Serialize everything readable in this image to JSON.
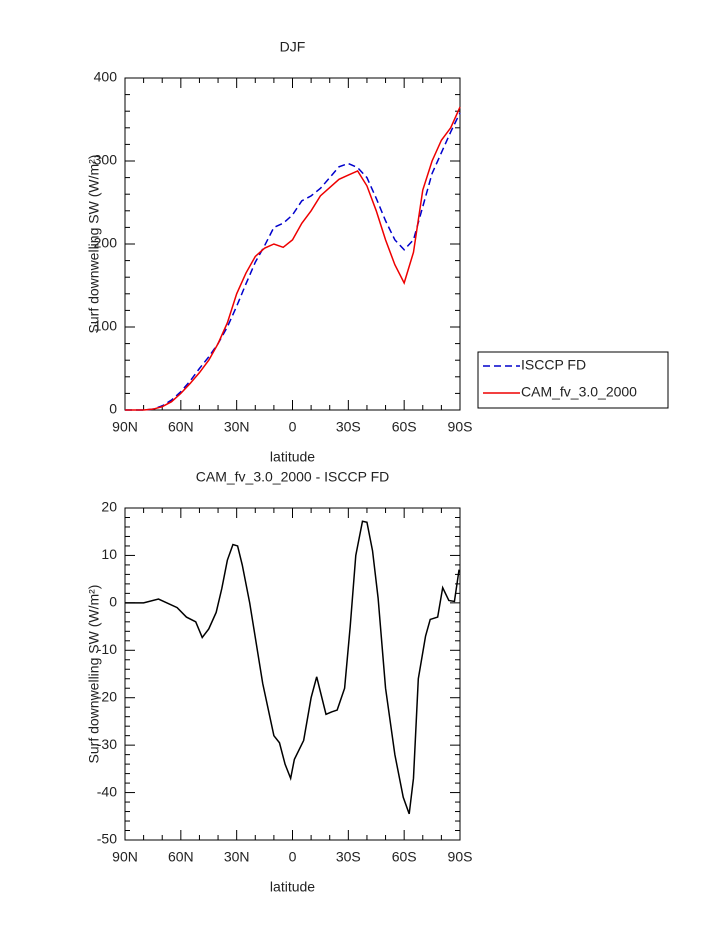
{
  "chart_data": [
    {
      "type": "line",
      "title": "DJF",
      "xlabel": "latitude",
      "ylabel": "Surf downwelling SW (W/m²)",
      "x": [
        90,
        85,
        80,
        75,
        70,
        65,
        60,
        55,
        50,
        45,
        40,
        35,
        30,
        25,
        20,
        15,
        10,
        5,
        0,
        -5,
        -10,
        -15,
        -20,
        -25,
        -30,
        -35,
        -40,
        -45,
        -50,
        -55,
        -60,
        -65,
        -70,
        -75,
        -80,
        -85,
        -90
      ],
      "series": [
        {
          "name": "ISCCP FD",
          "color": "#0000cc",
          "linestyle": "dashed",
          "values": [
            0,
            0,
            0,
            1,
            5,
            12,
            22,
            35,
            50,
            64,
            80,
            100,
            125,
            152,
            178,
            198,
            220,
            225,
            235,
            252,
            258,
            267,
            280,
            293,
            297,
            292,
            280,
            255,
            228,
            205,
            193,
            205,
            245,
            285,
            310,
            335,
            358
          ]
        },
        {
          "name": "CAM_fv_3.0_2000",
          "color": "#ee0000",
          "linestyle": "solid",
          "values": [
            0,
            0,
            0,
            1,
            4,
            10,
            20,
            32,
            45,
            60,
            80,
            105,
            140,
            165,
            185,
            195,
            200,
            196,
            205,
            225,
            240,
            258,
            268,
            278,
            283,
            288,
            270,
            240,
            205,
            175,
            153,
            190,
            265,
            300,
            325,
            340,
            365
          ]
        }
      ],
      "xlim": [
        90,
        -90
      ],
      "xticks": [
        {
          "value": 90,
          "label": "90N"
        },
        {
          "value": 60,
          "label": "60N"
        },
        {
          "value": 30,
          "label": "30N"
        },
        0,
        {
          "value": -30,
          "label": "30S"
        },
        {
          "value": -60,
          "label": "60S"
        },
        {
          "value": -90,
          "label": "90S"
        }
      ],
      "ylim": [
        0,
        400
      ],
      "yticks": [
        0,
        100,
        200,
        300,
        400
      ],
      "legend": "right"
    },
    {
      "type": "line",
      "title": "CAM_fv_3.0_2000 - ISCCP FD",
      "xlabel": "latitude",
      "ylabel": "Surf downwelling SW (W/m²)",
      "x": [
        90,
        85,
        80,
        72,
        62,
        57,
        52,
        48.5,
        45,
        41,
        38,
        35,
        32,
        29.5,
        27,
        23,
        16,
        10,
        7,
        4,
        1,
        -1,
        -6,
        -10,
        -13,
        -18,
        -21,
        -24,
        -28,
        -31,
        -34,
        -37.6,
        -40,
        -43,
        -46,
        -50,
        -55,
        -59.5,
        -62.7,
        -65,
        -67.6,
        -71.5,
        -74,
        -78,
        -80.7,
        -84,
        -87,
        -89.5
      ],
      "series": [
        {
          "color": "#000000",
          "linestyle": "solid",
          "values": [
            0,
            0,
            0,
            0.8,
            -1,
            -3,
            -4,
            -7.3,
            -5.5,
            -2,
            3,
            9,
            12.3,
            12,
            8,
            0,
            -17,
            -28,
            -29.5,
            -34,
            -37,
            -33,
            -29,
            -20,
            -15.6,
            -23.5,
            -23,
            -22.6,
            -18,
            -5,
            10,
            17.2,
            17,
            11,
            1,
            -18,
            -32,
            -41,
            -44.5,
            -37,
            -16,
            -7,
            -3.5,
            -3,
            3.2,
            0.5,
            0.3,
            7
          ]
        }
      ],
      "xlim": [
        90,
        -90
      ],
      "xticks": [
        {
          "value": 90,
          "label": "90N"
        },
        {
          "value": 60,
          "label": "60N"
        },
        {
          "value": 30,
          "label": "30N"
        },
        0,
        {
          "value": -30,
          "label": "30S"
        },
        {
          "value": -60,
          "label": "60S"
        },
        {
          "value": -90,
          "label": "90S"
        }
      ],
      "ylim": [
        -50,
        20
      ],
      "yticks": [
        -50,
        -40,
        -30,
        -20,
        -10,
        0,
        10,
        20
      ]
    }
  ]
}
